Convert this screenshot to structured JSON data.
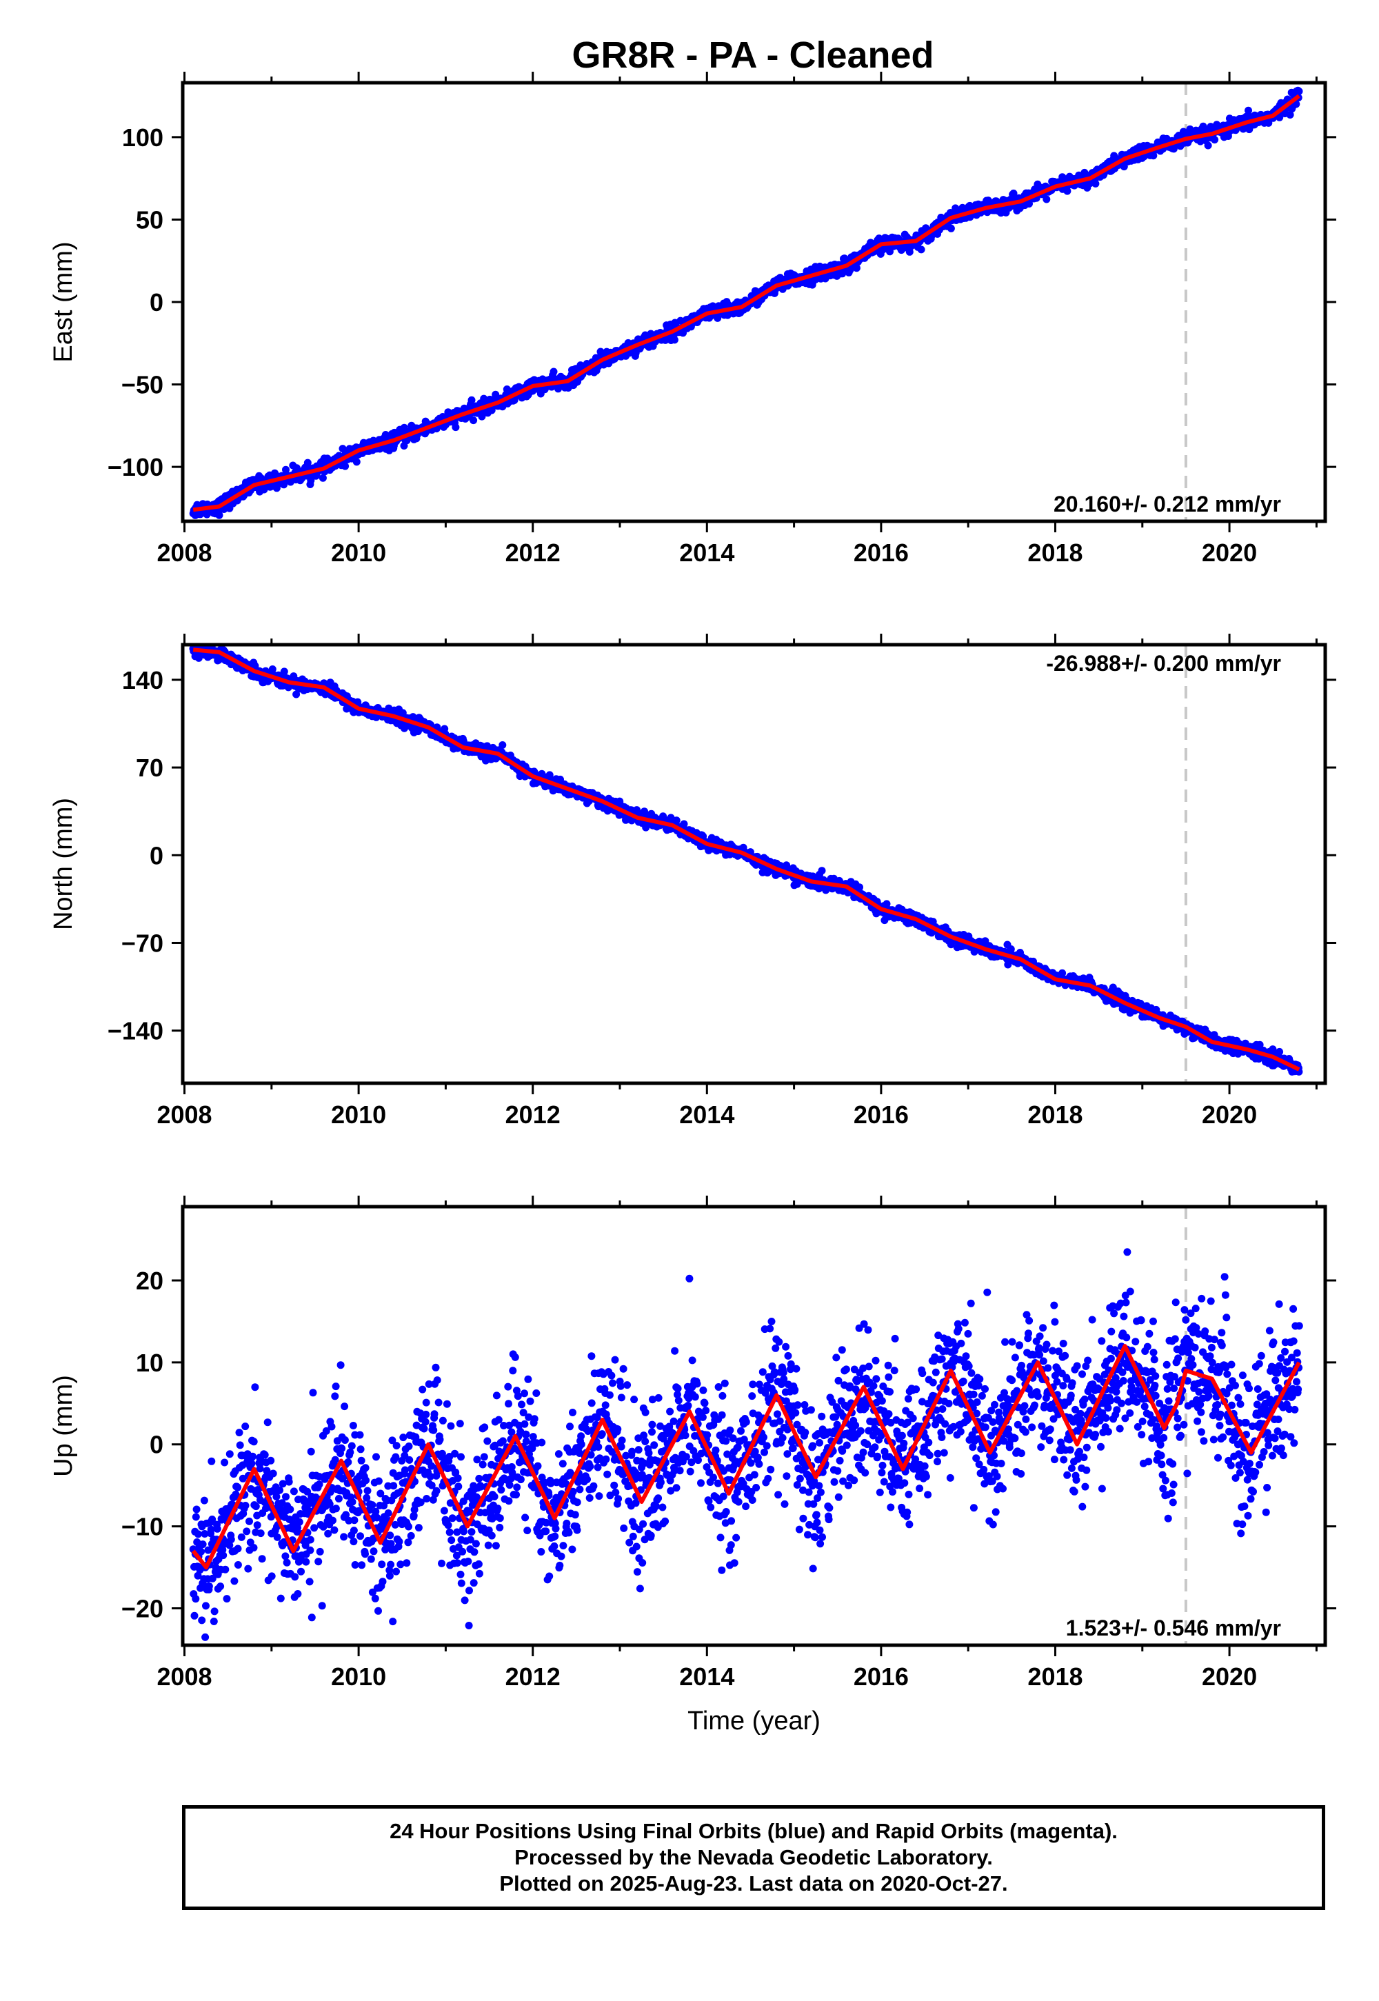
{
  "title": "GR8R  - PA - Cleaned",
  "footer": {
    "line1": "24 Hour Positions Using Final Orbits (blue) and Rapid Orbits (magenta).",
    "line2": "Processed by the Nevada Geodetic Laboratory.",
    "line3": "Plotted on 2025-Aug-23. Last data on 2020-Oct-27."
  },
  "colors": {
    "data": "#0000ff",
    "model": "#ff0000",
    "marker_line": "#c8c8c8",
    "frame": "#000000"
  },
  "chart_data": [
    {
      "type": "scatter",
      "title": "GR8R  - PA - Cleaned",
      "xlabel": "",
      "ylabel": "East (mm)",
      "xlim": [
        2007.98,
        2021.1
      ],
      "ylim": [
        -133,
        133
      ],
      "x_ticks": [
        2008,
        2010,
        2012,
        2014,
        2016,
        2018,
        2020
      ],
      "y_ticks": [
        100,
        50,
        0,
        -50,
        -100
      ],
      "y_tick_labels": [
        "100",
        "50",
        "0",
        "−50",
        "−100"
      ],
      "rate_label": "20.160+/- 0.212 mm/yr",
      "rate_position": "bottom-right",
      "equipment_change": 2019.5,
      "grid": false,
      "series": [
        {
          "x": [
            2008.1,
            2008.4,
            2008.8,
            2009.2,
            2009.6,
            2010.0,
            2010.4,
            2010.8,
            2011.2,
            2011.6,
            2012.0,
            2012.4,
            2012.8,
            2013.2,
            2013.6,
            2014.0,
            2014.4,
            2014.8,
            2015.2,
            2015.6,
            2016.0,
            2016.4,
            2016.8,
            2017.2,
            2017.6,
            2018.0,
            2018.4,
            2018.8,
            2019.2,
            2019.5,
            2019.8,
            2020.2,
            2020.5,
            2020.8
          ],
          "y": [
            -126,
            -124,
            -111,
            -106,
            -101,
            -90,
            -84,
            -76,
            -68,
            -61,
            -51,
            -48,
            -35,
            -26,
            -18,
            -7,
            -3,
            10,
            16,
            22,
            35,
            37,
            51,
            57,
            61,
            70,
            75,
            87,
            94,
            99,
            102,
            109,
            113,
            125
          ]
        }
      ]
    },
    {
      "type": "scatter",
      "xlabel": "",
      "ylabel": "North (mm)",
      "xlim": [
        2007.98,
        2021.1
      ],
      "ylim": [
        -182,
        168
      ],
      "x_ticks": [
        2008,
        2010,
        2012,
        2014,
        2016,
        2018,
        2020
      ],
      "y_ticks": [
        140,
        70,
        0,
        -70,
        -140
      ],
      "y_tick_labels": [
        "140",
        "70",
        "0",
        "−70",
        "−140"
      ],
      "rate_label": "-26.988+/- 0.200 mm/yr",
      "rate_position": "top-right",
      "equipment_change": 2019.5,
      "grid": false,
      "series": [
        {
          "x": [
            2008.1,
            2008.4,
            2008.8,
            2009.2,
            2009.6,
            2010.0,
            2010.4,
            2010.8,
            2011.2,
            2011.6,
            2012.0,
            2012.4,
            2012.8,
            2013.2,
            2013.6,
            2014.0,
            2014.4,
            2014.8,
            2015.2,
            2015.6,
            2016.0,
            2016.4,
            2016.8,
            2017.2,
            2017.6,
            2018.0,
            2018.4,
            2018.8,
            2019.2,
            2019.5,
            2019.8,
            2020.2,
            2020.5,
            2020.8
          ],
          "y": [
            164,
            162,
            147,
            138,
            134,
            117,
            111,
            102,
            86,
            81,
            63,
            53,
            43,
            30,
            24,
            9,
            2,
            -11,
            -21,
            -25,
            -43,
            -51,
            -65,
            -75,
            -83,
            -99,
            -104,
            -118,
            -130,
            -137,
            -149,
            -155,
            -161,
            -171
          ]
        }
      ]
    },
    {
      "type": "scatter",
      "xlabel": "Time (year)",
      "ylabel": "Up (mm)",
      "xlim": [
        2007.98,
        2021.1
      ],
      "ylim": [
        -24.5,
        29
      ],
      "x_ticks": [
        2008,
        2010,
        2012,
        2014,
        2016,
        2018,
        2020
      ],
      "y_ticks": [
        20,
        10,
        0,
        -10,
        -20
      ],
      "y_tick_labels": [
        "20",
        "10",
        "0",
        "−10",
        "−20"
      ],
      "rate_label": "1.523+/- 0.546 mm/yr",
      "rate_position": "bottom-right",
      "equipment_change": 2019.5,
      "grid": false,
      "series": [
        {
          "x": [
            2008.1,
            2008.25,
            2008.8,
            2009.25,
            2009.8,
            2010.25,
            2010.8,
            2011.25,
            2011.8,
            2012.25,
            2012.8,
            2013.25,
            2013.8,
            2014.25,
            2014.8,
            2015.25,
            2015.8,
            2016.25,
            2016.8,
            2017.25,
            2017.8,
            2018.25,
            2018.8,
            2019.25,
            2019.4,
            2019.5,
            2019.8,
            2020.25,
            2020.8
          ],
          "y": [
            -13,
            -15,
            -3,
            -13,
            -2,
            -12,
            0,
            -10,
            1,
            -9,
            3,
            -7,
            4,
            -6,
            6,
            -4,
            7,
            -3,
            9,
            -1,
            10,
            0,
            12,
            2,
            5,
            9,
            8,
            -1,
            10
          ]
        }
      ]
    }
  ]
}
